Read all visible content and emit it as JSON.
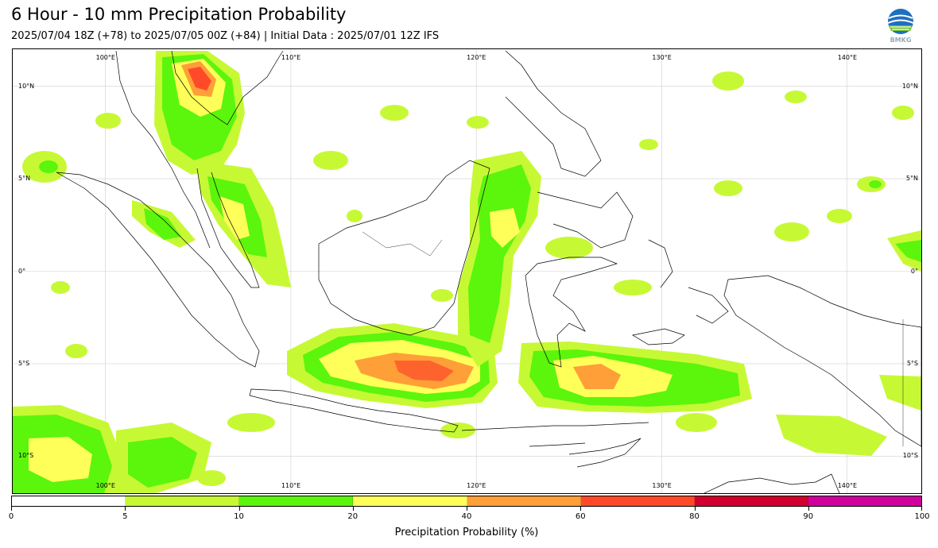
{
  "header": {
    "title": "6 Hour - 10 mm Precipitation Probability",
    "subtitle": "2025/07/04 18Z (+78) to 2025/07/05 00Z (+84) | Initial Data : 2025/07/01 12Z IFS",
    "logo_text": "BMKG"
  },
  "map": {
    "lon_range": [
      95,
      144
    ],
    "lat_range": [
      -12,
      12
    ],
    "lon_labels": [
      "100°E",
      "110°E",
      "120°E",
      "130°E",
      "140°E"
    ],
    "lat_labels": [
      "10°N",
      "5°N",
      "0°",
      "5°S",
      "10°S"
    ],
    "lon_values": [
      100,
      110,
      120,
      130,
      140
    ],
    "lat_values": [
      10,
      5,
      0,
      -5,
      -10
    ],
    "gridlines": true,
    "colors": {
      "coast": "#000000",
      "grid": "#d0d0d0"
    }
  },
  "colorbar": {
    "label": "Precipitation Probability (%)",
    "ticks": [
      "0",
      "5",
      "10",
      "20",
      "40",
      "60",
      "80",
      "90",
      "100"
    ],
    "colors": [
      "#ffffff",
      "#c6f934",
      "#5cf50c",
      "#ffff5a",
      "#ff9f38",
      "#ff4a2a",
      "#d2002e",
      "#d0009e"
    ]
  }
}
